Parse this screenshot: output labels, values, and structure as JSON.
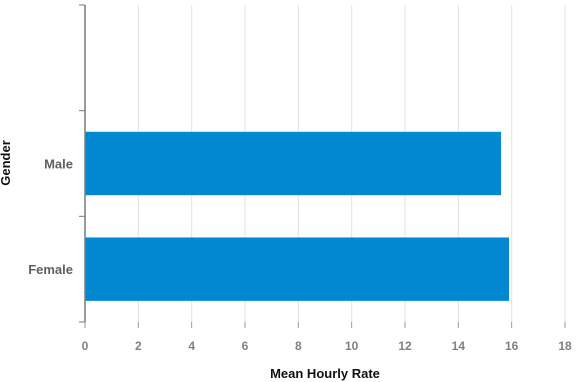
{
  "chart_data": {
    "type": "bar",
    "orientation": "horizontal",
    "categories": [
      "",
      "Male",
      "Female"
    ],
    "values": [
      null,
      15.6,
      15.9
    ],
    "xlabel": "Mean Hourly Rate",
    "ylabel": "Gender",
    "xlim": [
      0,
      18
    ],
    "xticks": [
      0,
      2,
      4,
      6,
      8,
      10,
      12,
      14,
      16,
      18
    ],
    "grid": "vertical",
    "bar_color": "#0288D1"
  }
}
